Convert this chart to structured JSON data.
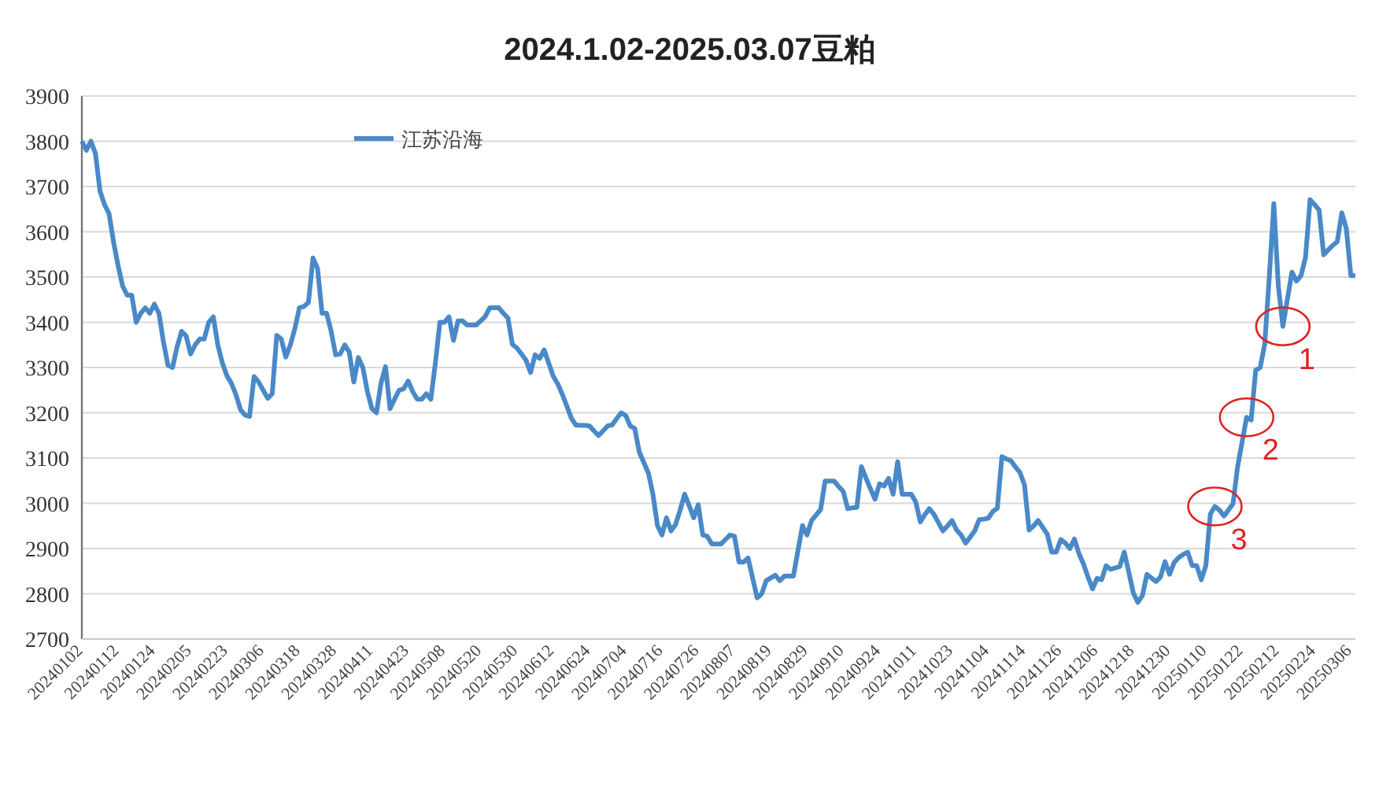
{
  "chart_data": {
    "type": "line",
    "title": "2024.1.02-2025.03.07豆粕",
    "categories": [
      "20240102",
      null,
      null,
      null,
      null,
      null,
      null,
      null,
      "20240112",
      null,
      null,
      null,
      null,
      null,
      null,
      null,
      "20240124",
      null,
      null,
      null,
      null,
      null,
      null,
      null,
      "20240205",
      null,
      null,
      null,
      null,
      null,
      null,
      null,
      "20240223",
      null,
      null,
      null,
      null,
      null,
      null,
      null,
      "20240306",
      null,
      null,
      null,
      null,
      null,
      null,
      null,
      "20240318",
      null,
      null,
      null,
      null,
      null,
      null,
      null,
      "20240328",
      null,
      null,
      null,
      null,
      null,
      null,
      null,
      "20240411",
      null,
      null,
      null,
      null,
      null,
      null,
      null,
      "20240423",
      null,
      null,
      null,
      null,
      null,
      null,
      null,
      "20240508",
      null,
      null,
      null,
      null,
      null,
      null,
      null,
      "20240520",
      null,
      null,
      null,
      null,
      null,
      null,
      null,
      "20240530",
      null,
      null,
      null,
      null,
      null,
      null,
      null,
      "20240612",
      null,
      null,
      null,
      null,
      null,
      null,
      null,
      "20240624",
      null,
      null,
      null,
      null,
      null,
      null,
      null,
      "20240704",
      null,
      null,
      null,
      null,
      null,
      null,
      null,
      "20240716",
      null,
      null,
      null,
      null,
      null,
      null,
      null,
      "20240726",
      null,
      null,
      null,
      null,
      null,
      null,
      null,
      "20240807",
      null,
      null,
      null,
      null,
      null,
      null,
      null,
      "20240819",
      null,
      null,
      null,
      null,
      null,
      null,
      null,
      "20240829",
      null,
      null,
      null,
      null,
      null,
      null,
      null,
      "20240910",
      null,
      null,
      null,
      null,
      null,
      null,
      null,
      "20240924",
      null,
      null,
      null,
      null,
      null,
      null,
      null,
      "20241011",
      null,
      null,
      null,
      null,
      null,
      null,
      null,
      "20241023",
      null,
      null,
      null,
      null,
      null,
      null,
      null,
      "20241104",
      null,
      null,
      null,
      null,
      null,
      null,
      null,
      "20241114",
      null,
      null,
      null,
      null,
      null,
      null,
      null,
      "20241126",
      null,
      null,
      null,
      null,
      null,
      null,
      null,
      "20241206",
      null,
      null,
      null,
      null,
      null,
      null,
      null,
      "20241218",
      null,
      null,
      null,
      null,
      null,
      null,
      null,
      "20241230",
      null,
      null,
      null,
      null,
      null,
      null,
      null,
      "20250110",
      null,
      null,
      null,
      null,
      null,
      null,
      null,
      "20250122",
      null,
      null,
      null,
      null,
      null,
      null,
      null,
      "20250212",
      null,
      null,
      null,
      null,
      null,
      null,
      null,
      "20250224",
      null,
      null,
      null,
      null,
      null,
      null,
      null,
      "20250306",
      null
    ],
    "series": [
      {
        "name": "江苏沿海",
        "color": "#4a89c8",
        "values": [
          3800,
          3780,
          3800,
          3773,
          3690,
          3660,
          3640,
          3577,
          3525,
          3480,
          3460,
          3460,
          3400,
          3420,
          3432,
          3420,
          3440,
          3420,
          3357,
          3305,
          3300,
          3345,
          3380,
          3370,
          3330,
          3350,
          3363,
          3363,
          3400,
          3412,
          3350,
          3310,
          3282,
          3265,
          3240,
          3207,
          3195,
          3192,
          3280,
          3268,
          3250,
          3232,
          3242,
          3371,
          3363,
          3323,
          3350,
          3386,
          3432,
          3435,
          3444,
          3542,
          3519,
          3420,
          3420,
          3380,
          3328,
          3330,
          3350,
          3334,
          3268,
          3322,
          3300,
          3247,
          3209,
          3200,
          3265,
          3302,
          3209,
          3230,
          3250,
          3253,
          3270,
          3247,
          3230,
          3230,
          3242,
          3230,
          3310,
          3400,
          3400,
          3412,
          3360,
          3403,
          3403,
          3394,
          3394,
          3394,
          3403,
          3413,
          3432,
          3432,
          3432,
          3420,
          3410,
          3351,
          3343,
          3330,
          3316,
          3289,
          3328,
          3320,
          3339,
          3310,
          3281,
          3264,
          3241,
          3215,
          3188,
          3173,
          3172,
          3172,
          3171,
          3160,
          3150,
          3160,
          3171,
          3173,
          3187,
          3200,
          3194,
          3171,
          3165,
          3113,
          3090,
          3067,
          3020,
          2951,
          2930,
          2968,
          2939,
          2953,
          2985,
          3020,
          2995,
          2968,
          2997,
          2930,
          2927,
          2910,
          2910,
          2910,
          2920,
          2930,
          2927,
          2870,
          2870,
          2879,
          2835,
          2791,
          2800,
          2829,
          2835,
          2841,
          2829,
          2839,
          2839,
          2839,
          2895,
          2951,
          2930,
          2962,
          2974,
          2986,
          3049,
          3049,
          3049,
          3037,
          3026,
          2988,
          2990,
          2991,
          3081,
          3056,
          3032,
          3009,
          3043,
          3038,
          3055,
          3020,
          3092,
          3020,
          3020,
          3020,
          3003,
          2959,
          2975,
          2988,
          2976,
          2957,
          2939,
          2950,
          2962,
          2941,
          2930,
          2912,
          2925,
          2939,
          2964,
          2965,
          2967,
          2982,
          2989,
          3103,
          3098,
          3094,
          3080,
          3068,
          3040,
          2941,
          2950,
          2962,
          2947,
          2932,
          2892,
          2892,
          2920,
          2912,
          2900,
          2921,
          2889,
          2866,
          2837,
          2811,
          2834,
          2831,
          2862,
          2854,
          2857,
          2860,
          2892,
          2848,
          2802,
          2781,
          2796,
          2843,
          2835,
          2827,
          2837,
          2871,
          2843,
          2869,
          2880,
          2887,
          2892,
          2862,
          2862,
          2831,
          2862,
          2976,
          2993,
          2985,
          2972,
          2985,
          2999,
          3080,
          3135,
          3190,
          3184,
          3294,
          3300,
          3352,
          3500,
          3662,
          3480,
          3391,
          3451,
          3511,
          3491,
          3503,
          3544,
          3671,
          3660,
          3648,
          3549,
          3560,
          3570,
          3578,
          3642,
          3607,
          3503,
          3503
        ]
      }
    ],
    "ylim": [
      2700,
      3900
    ],
    "yticks": [
      2700,
      2800,
      2900,
      3000,
      3100,
      3200,
      3300,
      3400,
      3500,
      3600,
      3700,
      3800,
      3900
    ],
    "grid": "y",
    "legend": "top left",
    "marker": "none",
    "line_style": "solid",
    "annotations": [
      {
        "text": "1",
        "y": 3391
      },
      {
        "text": "2",
        "y": 3190
      },
      {
        "text": "3",
        "y": 2993
      }
    ]
  }
}
